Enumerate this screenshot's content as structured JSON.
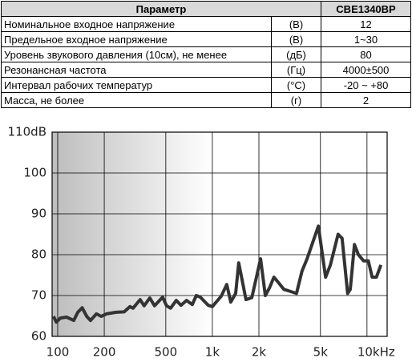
{
  "table": {
    "header": [
      "Параметр",
      "CBE1340BP"
    ],
    "rows": [
      [
        "Номинальное входное напряжение",
        "(В)",
        "12"
      ],
      [
        "Предельное входное напряжение",
        "(В)",
        "1~30"
      ],
      [
        "Уровень звукового давления (10см), не менее",
        "(дБ)",
        "80"
      ],
      [
        "Резонансная частота",
        "(Гц)",
        "4000±500"
      ],
      [
        "Интервал рабочих температур",
        "(°C)",
        "-20 ~ +80"
      ],
      [
        "Масса, не более",
        "(г)",
        "2"
      ]
    ]
  },
  "chart_data": {
    "type": "line",
    "log_x": true,
    "grid": true,
    "color": "#333333",
    "xlim": [
      92,
      13500
    ],
    "ylim": [
      60,
      110
    ],
    "xticks": [
      100,
      200,
      500,
      {
        "value": 1000,
        "label": "1k"
      },
      {
        "value": 2000,
        "label": "2k"
      },
      {
        "value": 5000,
        "label": "5k"
      },
      {
        "value": 10000,
        "label": "10kHz"
      }
    ],
    "yticks": [
      60,
      70,
      80,
      90,
      100,
      {
        "value": 110,
        "label": "110dB"
      }
    ],
    "x": [
      94,
      98,
      104,
      114,
      127,
      135,
      144,
      154,
      163,
      178,
      191,
      207,
      239,
      269,
      293,
      307,
      341,
      362,
      394,
      423,
      477,
      506,
      537,
      584,
      627,
      681,
      742,
      787,
      836,
      941,
      1000,
      1140,
      1240,
      1315,
      1415,
      1480,
      1650,
      1800,
      2050,
      2200,
      2350,
      2500,
      2700,
      2900,
      3200,
      3500,
      3800,
      4100,
      4850,
      5400,
      5800,
      6500,
      6900,
      7500,
      7800,
      8300,
      8800,
      9500,
      10200,
      10800,
      11500,
      12300
    ],
    "values": [
      64.9,
      63.5,
      64.5,
      64.7,
      63.9,
      65.9,
      67,
      64.9,
      63.9,
      65.5,
      64.9,
      65.5,
      65.9,
      66,
      67.3,
      66.9,
      69,
      67.5,
      69.4,
      67.5,
      69.6,
      67.5,
      66.9,
      68.8,
      67.6,
      68.8,
      67.8,
      70,
      69.6,
      67.6,
      67.3,
      69.8,
      72.7,
      68.4,
      70.5,
      78,
      69,
      69.5,
      79,
      70,
      72,
      74.5,
      73,
      71.5,
      71,
      70.5,
      76,
      79,
      87,
      74.5,
      77.5,
      85,
      84,
      70.5,
      71.5,
      82.5,
      80,
      78.5,
      78.5,
      74.5,
      74.5,
      77.5
    ]
  }
}
